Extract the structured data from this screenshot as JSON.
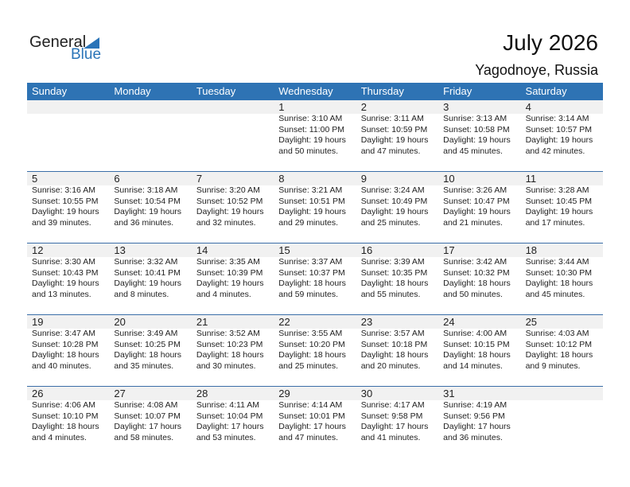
{
  "logo": {
    "text1": "General",
    "text2": "Blue",
    "brand_color": "#2a74b8"
  },
  "header": {
    "title": "July 2026",
    "location": "Yagodnoye, Russia"
  },
  "days_of_week": [
    "Sunday",
    "Monday",
    "Tuesday",
    "Wednesday",
    "Thursday",
    "Friday",
    "Saturday"
  ],
  "header_color": "#2e73b4",
  "weeks": [
    [
      null,
      null,
      null,
      {
        "date": "1",
        "sunrise": "Sunrise: 3:10 AM",
        "sunset": "Sunset: 11:00 PM",
        "daylight1": "Daylight: 19 hours",
        "daylight2": "and 50 minutes."
      },
      {
        "date": "2",
        "sunrise": "Sunrise: 3:11 AM",
        "sunset": "Sunset: 10:59 PM",
        "daylight1": "Daylight: 19 hours",
        "daylight2": "and 47 minutes."
      },
      {
        "date": "3",
        "sunrise": "Sunrise: 3:13 AM",
        "sunset": "Sunset: 10:58 PM",
        "daylight1": "Daylight: 19 hours",
        "daylight2": "and 45 minutes."
      },
      {
        "date": "4",
        "sunrise": "Sunrise: 3:14 AM",
        "sunset": "Sunset: 10:57 PM",
        "daylight1": "Daylight: 19 hours",
        "daylight2": "and 42 minutes."
      }
    ],
    [
      {
        "date": "5",
        "sunrise": "Sunrise: 3:16 AM",
        "sunset": "Sunset: 10:55 PM",
        "daylight1": "Daylight: 19 hours",
        "daylight2": "and 39 minutes."
      },
      {
        "date": "6",
        "sunrise": "Sunrise: 3:18 AM",
        "sunset": "Sunset: 10:54 PM",
        "daylight1": "Daylight: 19 hours",
        "daylight2": "and 36 minutes."
      },
      {
        "date": "7",
        "sunrise": "Sunrise: 3:20 AM",
        "sunset": "Sunset: 10:52 PM",
        "daylight1": "Daylight: 19 hours",
        "daylight2": "and 32 minutes."
      },
      {
        "date": "8",
        "sunrise": "Sunrise: 3:21 AM",
        "sunset": "Sunset: 10:51 PM",
        "daylight1": "Daylight: 19 hours",
        "daylight2": "and 29 minutes."
      },
      {
        "date": "9",
        "sunrise": "Sunrise: 3:24 AM",
        "sunset": "Sunset: 10:49 PM",
        "daylight1": "Daylight: 19 hours",
        "daylight2": "and 25 minutes."
      },
      {
        "date": "10",
        "sunrise": "Sunrise: 3:26 AM",
        "sunset": "Sunset: 10:47 PM",
        "daylight1": "Daylight: 19 hours",
        "daylight2": "and 21 minutes."
      },
      {
        "date": "11",
        "sunrise": "Sunrise: 3:28 AM",
        "sunset": "Sunset: 10:45 PM",
        "daylight1": "Daylight: 19 hours",
        "daylight2": "and 17 minutes."
      }
    ],
    [
      {
        "date": "12",
        "sunrise": "Sunrise: 3:30 AM",
        "sunset": "Sunset: 10:43 PM",
        "daylight1": "Daylight: 19 hours",
        "daylight2": "and 13 minutes."
      },
      {
        "date": "13",
        "sunrise": "Sunrise: 3:32 AM",
        "sunset": "Sunset: 10:41 PM",
        "daylight1": "Daylight: 19 hours",
        "daylight2": "and 8 minutes."
      },
      {
        "date": "14",
        "sunrise": "Sunrise: 3:35 AM",
        "sunset": "Sunset: 10:39 PM",
        "daylight1": "Daylight: 19 hours",
        "daylight2": "and 4 minutes."
      },
      {
        "date": "15",
        "sunrise": "Sunrise: 3:37 AM",
        "sunset": "Sunset: 10:37 PM",
        "daylight1": "Daylight: 18 hours",
        "daylight2": "and 59 minutes."
      },
      {
        "date": "16",
        "sunrise": "Sunrise: 3:39 AM",
        "sunset": "Sunset: 10:35 PM",
        "daylight1": "Daylight: 18 hours",
        "daylight2": "and 55 minutes."
      },
      {
        "date": "17",
        "sunrise": "Sunrise: 3:42 AM",
        "sunset": "Sunset: 10:32 PM",
        "daylight1": "Daylight: 18 hours",
        "daylight2": "and 50 minutes."
      },
      {
        "date": "18",
        "sunrise": "Sunrise: 3:44 AM",
        "sunset": "Sunset: 10:30 PM",
        "daylight1": "Daylight: 18 hours",
        "daylight2": "and 45 minutes."
      }
    ],
    [
      {
        "date": "19",
        "sunrise": "Sunrise: 3:47 AM",
        "sunset": "Sunset: 10:28 PM",
        "daylight1": "Daylight: 18 hours",
        "daylight2": "and 40 minutes."
      },
      {
        "date": "20",
        "sunrise": "Sunrise: 3:49 AM",
        "sunset": "Sunset: 10:25 PM",
        "daylight1": "Daylight: 18 hours",
        "daylight2": "and 35 minutes."
      },
      {
        "date": "21",
        "sunrise": "Sunrise: 3:52 AM",
        "sunset": "Sunset: 10:23 PM",
        "daylight1": "Daylight: 18 hours",
        "daylight2": "and 30 minutes."
      },
      {
        "date": "22",
        "sunrise": "Sunrise: 3:55 AM",
        "sunset": "Sunset: 10:20 PM",
        "daylight1": "Daylight: 18 hours",
        "daylight2": "and 25 minutes."
      },
      {
        "date": "23",
        "sunrise": "Sunrise: 3:57 AM",
        "sunset": "Sunset: 10:18 PM",
        "daylight1": "Daylight: 18 hours",
        "daylight2": "and 20 minutes."
      },
      {
        "date": "24",
        "sunrise": "Sunrise: 4:00 AM",
        "sunset": "Sunset: 10:15 PM",
        "daylight1": "Daylight: 18 hours",
        "daylight2": "and 14 minutes."
      },
      {
        "date": "25",
        "sunrise": "Sunrise: 4:03 AM",
        "sunset": "Sunset: 10:12 PM",
        "daylight1": "Daylight: 18 hours",
        "daylight2": "and 9 minutes."
      }
    ],
    [
      {
        "date": "26",
        "sunrise": "Sunrise: 4:06 AM",
        "sunset": "Sunset: 10:10 PM",
        "daylight1": "Daylight: 18 hours",
        "daylight2": "and 4 minutes."
      },
      {
        "date": "27",
        "sunrise": "Sunrise: 4:08 AM",
        "sunset": "Sunset: 10:07 PM",
        "daylight1": "Daylight: 17 hours",
        "daylight2": "and 58 minutes."
      },
      {
        "date": "28",
        "sunrise": "Sunrise: 4:11 AM",
        "sunset": "Sunset: 10:04 PM",
        "daylight1": "Daylight: 17 hours",
        "daylight2": "and 53 minutes."
      },
      {
        "date": "29",
        "sunrise": "Sunrise: 4:14 AM",
        "sunset": "Sunset: 10:01 PM",
        "daylight1": "Daylight: 17 hours",
        "daylight2": "and 47 minutes."
      },
      {
        "date": "30",
        "sunrise": "Sunrise: 4:17 AM",
        "sunset": "Sunset: 9:58 PM",
        "daylight1": "Daylight: 17 hours",
        "daylight2": "and 41 minutes."
      },
      {
        "date": "31",
        "sunrise": "Sunrise: 4:19 AM",
        "sunset": "Sunset: 9:56 PM",
        "daylight1": "Daylight: 17 hours",
        "daylight2": "and 36 minutes."
      },
      null
    ]
  ]
}
